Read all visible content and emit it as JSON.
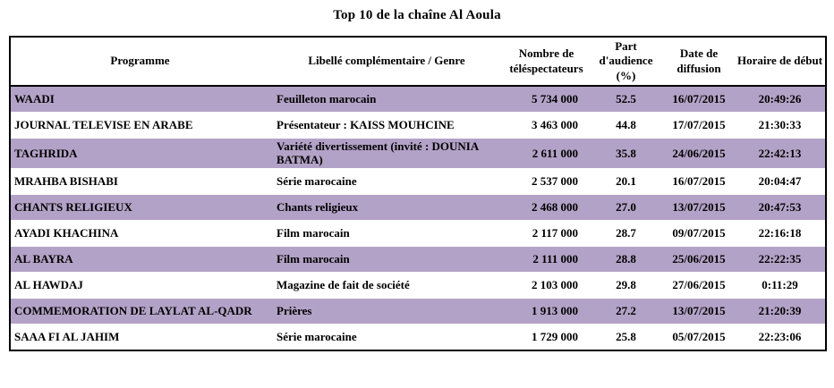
{
  "title": "Top 10 de la chaîne Al Aoula",
  "table": {
    "columns": [
      {
        "label": "Programme"
      },
      {
        "label": "Libellé complémentaire / Genre"
      },
      {
        "label": "Nombre de téléspectateurs"
      },
      {
        "label": "Part d'audience (%)"
      },
      {
        "label": "Date de diffusion"
      },
      {
        "label": "Horaire de début"
      }
    ],
    "rows": [
      {
        "programme": "WAADI",
        "genre": "Feuilleton marocain",
        "viewers": "5 734 000",
        "share": "52.5",
        "date": "16/07/2015",
        "time": "20:49:26"
      },
      {
        "programme": "JOURNAL TELEVISE EN ARABE",
        "genre": "Présentateur : KAISS MOUHCINE",
        "viewers": "3 463 000",
        "share": "44.8",
        "date": "17/07/2015",
        "time": "21:30:33"
      },
      {
        "programme": "TAGHRIDA",
        "genre": "Variété divertissement (invité : DOUNIA BATMA)",
        "viewers": "2 611 000",
        "share": "35.8",
        "date": "24/06/2015",
        "time": "22:42:13"
      },
      {
        "programme": "MRAHBA BISHABI",
        "genre": "Série marocaine",
        "viewers": "2 537 000",
        "share": "20.1",
        "date": "16/07/2015",
        "time": "20:04:47"
      },
      {
        "programme": "CHANTS RELIGIEUX",
        "genre": "Chants religieux",
        "viewers": "2 468 000",
        "share": "27.0",
        "date": "13/07/2015",
        "time": "20:47:53"
      },
      {
        "programme": "AYADI KHACHINA",
        "genre": "Film marocain",
        "viewers": "2 117 000",
        "share": "28.7",
        "date": "09/07/2015",
        "time": "22:16:18"
      },
      {
        "programme": "AL BAYRA",
        "genre": "Film marocain",
        "viewers": "2 111 000",
        "share": "28.8",
        "date": "25/06/2015",
        "time": "22:22:35"
      },
      {
        "programme": "AL HAWDAJ",
        "genre": "Magazine de fait de société",
        "viewers": "2 103 000",
        "share": "29.8",
        "date": "27/06/2015",
        "time": "0:11:29"
      },
      {
        "programme": "COMMEMORATION DE LAYLAT AL-QADR",
        "genre": "Prières",
        "viewers": "1 913 000",
        "share": "27.2",
        "date": "13/07/2015",
        "time": "21:20:39"
      },
      {
        "programme": "SAAA FI AL JAHIM",
        "genre": "Série marocaine",
        "viewers": "1 729 000",
        "share": "25.8",
        "date": "05/07/2015",
        "time": "22:23:06"
      }
    ],
    "colors": {
      "row_shade": "#b3a2c7",
      "border": "#000000",
      "text": "#000000",
      "background": "#ffffff"
    }
  }
}
